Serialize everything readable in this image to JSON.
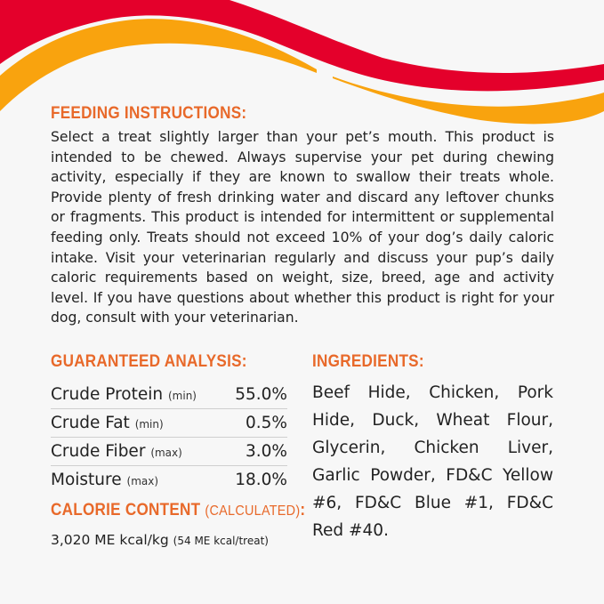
{
  "colors": {
    "background": "#f7f7f7",
    "heading": "#e8692a",
    "wave_red": "#e4002b",
    "wave_yellow": "#f9a30e"
  },
  "feeding": {
    "heading": "FEEDING INSTRUCTIONS:",
    "body": "Select a treat slightly larger than your pet’s mouth. This product is intended to be chewed. Always supervise your pet during chewing activity, especially if they are known to swallow their treats whole. Provide plenty of fresh drinking water and discard any leftover chunks or fragments. This product is intended for intermittent or supplemental feeding only. Treats should not exceed 10% of your dog’s daily caloric intake. Visit your veterinarian regularly and discuss your pup’s daily caloric requirements based on weight, size, breed, age and activity level. If you have questions about whether this product is right for your dog, consult with your veterinarian."
  },
  "analysis": {
    "heading": "GUARANTEED ANALYSIS:",
    "rows": [
      {
        "name": "Crude Protein",
        "qualifier": "(min)",
        "value": "55.0%"
      },
      {
        "name": "Crude Fat",
        "qualifier": "(min)",
        "value": "0.5%"
      },
      {
        "name": "Crude Fiber",
        "qualifier": "(max)",
        "value": "3.0%"
      },
      {
        "name": "Moisture",
        "qualifier": "(max)",
        "value": "18.0%"
      }
    ]
  },
  "calorie": {
    "heading": "CALORIE CONTENT",
    "subheading": "(CALCULATED)",
    "colon": ":",
    "value": "3,020 ME kcal/kg",
    "per_treat": "(54 ME kcal/treat)"
  },
  "ingredients": {
    "heading": "INGREDIENTS:",
    "text": "Beef Hide, Chicken, Pork Hide, Duck, Wheat Flour, Glycerin, Chicken Liver, Garlic Powder, FD&C Yellow #6, FD&C Blue #1, FD&C Red #40."
  }
}
